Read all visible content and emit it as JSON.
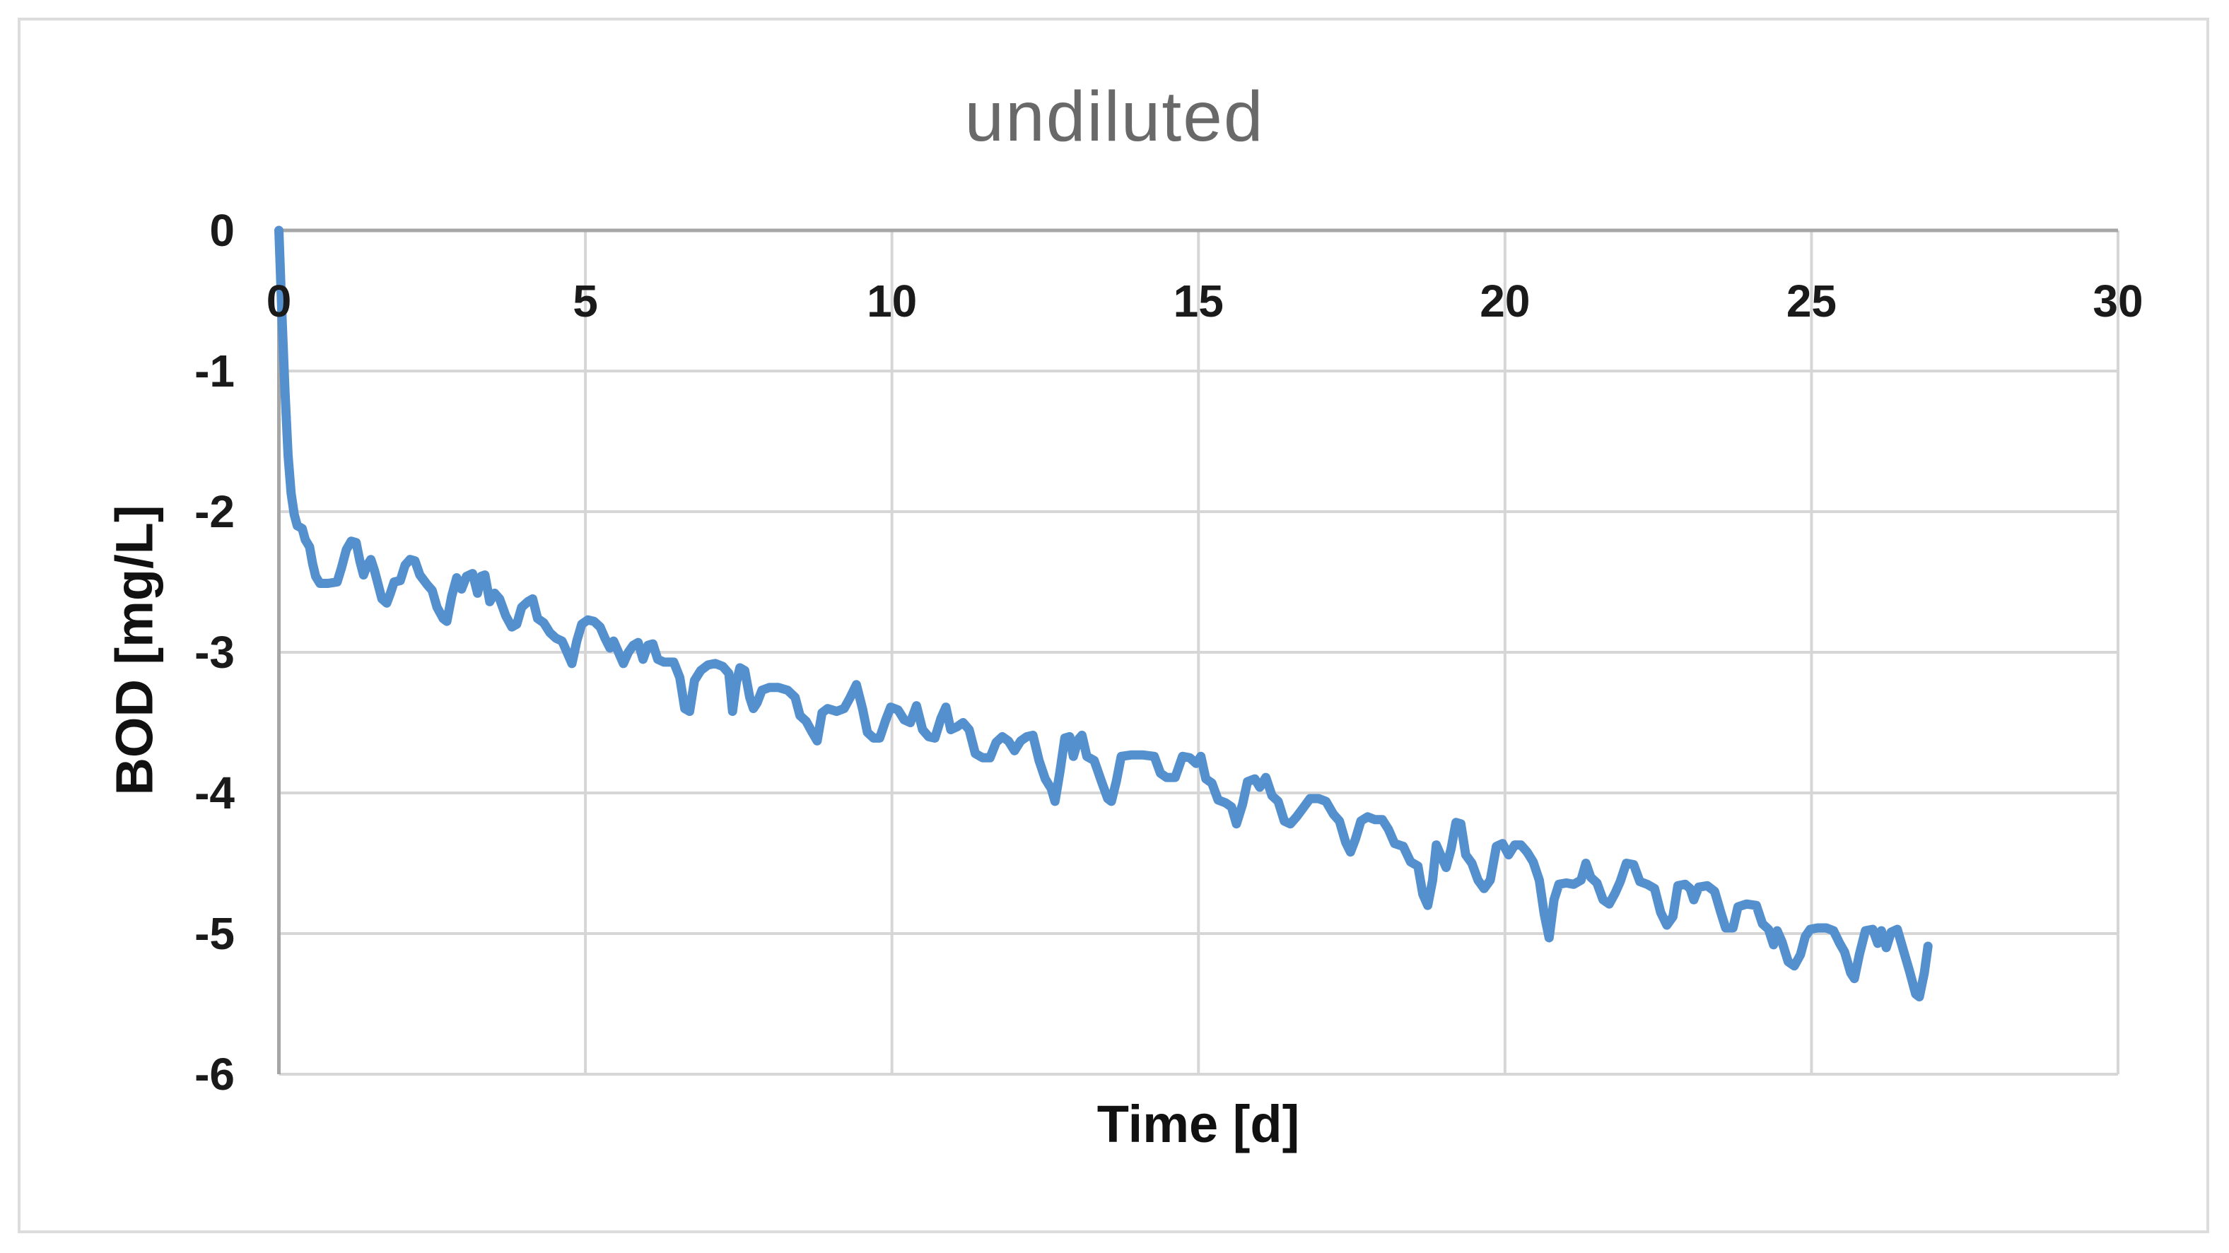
{
  "window": {
    "background": "#ffffff",
    "frame_border_color": "#dcdcdc"
  },
  "chart_data": {
    "type": "line",
    "title": "undiluted",
    "title_color": "#696969",
    "xlabel": "Time [d]",
    "ylabel": "BOD [mg/L]",
    "xlim": [
      0,
      30
    ],
    "ylim": [
      -6,
      0
    ],
    "x_ticks": [
      0,
      5,
      10,
      15,
      20,
      25,
      30
    ],
    "y_ticks": [
      0,
      -1,
      -2,
      -3,
      -4,
      -5,
      -6
    ],
    "grid": true,
    "legend_position": "none",
    "gridline_color": "#d6d6d6",
    "axis_line_color": "#a6a6a6",
    "tick_label_color": "#1a1a1a",
    "series": [
      {
        "color": "#5590ce",
        "line_width": 13,
        "points": [
          [
            0,
            0
          ],
          [
            0.05,
            -0.6
          ],
          [
            0.1,
            -1.15
          ],
          [
            0.15,
            -1.6
          ],
          [
            0.2,
            -1.87
          ],
          [
            0.25,
            -2.02
          ],
          [
            0.3,
            -2.1
          ],
          [
            0.38,
            -2.12
          ],
          [
            0.43,
            -2.2
          ],
          [
            0.5,
            -2.25
          ],
          [
            0.55,
            -2.37
          ],
          [
            0.6,
            -2.46
          ],
          [
            0.67,
            -2.51
          ],
          [
            0.8,
            -2.51
          ],
          [
            0.95,
            -2.5
          ],
          [
            1.02,
            -2.4
          ],
          [
            1.1,
            -2.27
          ],
          [
            1.18,
            -2.21
          ],
          [
            1.26,
            -2.22
          ],
          [
            1.32,
            -2.35
          ],
          [
            1.38,
            -2.45
          ],
          [
            1.44,
            -2.38
          ],
          [
            1.5,
            -2.34
          ],
          [
            1.56,
            -2.42
          ],
          [
            1.62,
            -2.52
          ],
          [
            1.68,
            -2.62
          ],
          [
            1.76,
            -2.65
          ],
          [
            1.82,
            -2.58
          ],
          [
            1.88,
            -2.5
          ],
          [
            1.98,
            -2.49
          ],
          [
            2.06,
            -2.38
          ],
          [
            2.14,
            -2.34
          ],
          [
            2.22,
            -2.35
          ],
          [
            2.3,
            -2.45
          ],
          [
            2.42,
            -2.52
          ],
          [
            2.5,
            -2.56
          ],
          [
            2.58,
            -2.68
          ],
          [
            2.68,
            -2.76
          ],
          [
            2.74,
            -2.78
          ],
          [
            2.82,
            -2.6
          ],
          [
            2.9,
            -2.47
          ],
          [
            2.98,
            -2.55
          ],
          [
            3.06,
            -2.46
          ],
          [
            3.16,
            -2.44
          ],
          [
            3.24,
            -2.58
          ],
          [
            3.3,
            -2.46
          ],
          [
            3.36,
            -2.45
          ],
          [
            3.44,
            -2.64
          ],
          [
            3.52,
            -2.58
          ],
          [
            3.6,
            -2.62
          ],
          [
            3.7,
            -2.74
          ],
          [
            3.8,
            -2.82
          ],
          [
            3.88,
            -2.8
          ],
          [
            3.96,
            -2.68
          ],
          [
            4.06,
            -2.64
          ],
          [
            4.14,
            -2.62
          ],
          [
            4.22,
            -2.76
          ],
          [
            4.32,
            -2.79
          ],
          [
            4.42,
            -2.86
          ],
          [
            4.52,
            -2.9
          ],
          [
            4.62,
            -2.92
          ],
          [
            4.7,
            -3.0
          ],
          [
            4.78,
            -3.08
          ],
          [
            4.86,
            -2.92
          ],
          [
            4.94,
            -2.8
          ],
          [
            5.04,
            -2.77
          ],
          [
            5.14,
            -2.78
          ],
          [
            5.24,
            -2.82
          ],
          [
            5.32,
            -2.9
          ],
          [
            5.4,
            -2.97
          ],
          [
            5.46,
            -2.92
          ],
          [
            5.54,
            -3.0
          ],
          [
            5.62,
            -3.08
          ],
          [
            5.7,
            -3.0
          ],
          [
            5.78,
            -2.95
          ],
          [
            5.86,
            -2.93
          ],
          [
            5.94,
            -3.05
          ],
          [
            6.02,
            -2.95
          ],
          [
            6.1,
            -2.94
          ],
          [
            6.18,
            -3.05
          ],
          [
            6.28,
            -3.07
          ],
          [
            6.44,
            -3.07
          ],
          [
            6.54,
            -3.18
          ],
          [
            6.62,
            -3.4
          ],
          [
            6.7,
            -3.42
          ],
          [
            6.78,
            -3.2
          ],
          [
            6.88,
            -3.13
          ],
          [
            7.0,
            -3.09
          ],
          [
            7.12,
            -3.08
          ],
          [
            7.24,
            -3.1
          ],
          [
            7.34,
            -3.15
          ],
          [
            7.4,
            -3.42
          ],
          [
            7.46,
            -3.22
          ],
          [
            7.52,
            -3.11
          ],
          [
            7.6,
            -3.13
          ],
          [
            7.68,
            -3.32
          ],
          [
            7.74,
            -3.4
          ],
          [
            7.8,
            -3.36
          ],
          [
            7.88,
            -3.27
          ],
          [
            8.0,
            -3.25
          ],
          [
            8.15,
            -3.25
          ],
          [
            8.3,
            -3.27
          ],
          [
            8.42,
            -3.32
          ],
          [
            8.5,
            -3.45
          ],
          [
            8.6,
            -3.49
          ],
          [
            8.7,
            -3.57
          ],
          [
            8.78,
            -3.63
          ],
          [
            8.86,
            -3.43
          ],
          [
            8.95,
            -3.4
          ],
          [
            9.1,
            -3.42
          ],
          [
            9.22,
            -3.4
          ],
          [
            9.32,
            -3.32
          ],
          [
            9.42,
            -3.23
          ],
          [
            9.52,
            -3.4
          ],
          [
            9.6,
            -3.57
          ],
          [
            9.7,
            -3.61
          ],
          [
            9.8,
            -3.61
          ],
          [
            9.9,
            -3.48
          ],
          [
            9.98,
            -3.39
          ],
          [
            10.1,
            -3.41
          ],
          [
            10.2,
            -3.48
          ],
          [
            10.3,
            -3.5
          ],
          [
            10.4,
            -3.38
          ],
          [
            10.5,
            -3.55
          ],
          [
            10.6,
            -3.6
          ],
          [
            10.7,
            -3.61
          ],
          [
            10.8,
            -3.47
          ],
          [
            10.88,
            -3.39
          ],
          [
            10.96,
            -3.55
          ],
          [
            11.06,
            -3.53
          ],
          [
            11.16,
            -3.5
          ],
          [
            11.26,
            -3.55
          ],
          [
            11.36,
            -3.72
          ],
          [
            11.48,
            -3.75
          ],
          [
            11.6,
            -3.75
          ],
          [
            11.7,
            -3.64
          ],
          [
            11.8,
            -3.6
          ],
          [
            11.9,
            -3.63
          ],
          [
            12.0,
            -3.7
          ],
          [
            12.1,
            -3.63
          ],
          [
            12.2,
            -3.6
          ],
          [
            12.3,
            -3.59
          ],
          [
            12.4,
            -3.77
          ],
          [
            12.5,
            -3.9
          ],
          [
            12.6,
            -3.97
          ],
          [
            12.66,
            -4.06
          ],
          [
            12.74,
            -3.85
          ],
          [
            12.82,
            -3.61
          ],
          [
            12.9,
            -3.6
          ],
          [
            12.96,
            -3.74
          ],
          [
            13.04,
            -3.62
          ],
          [
            13.1,
            -3.59
          ],
          [
            13.18,
            -3.74
          ],
          [
            13.3,
            -3.77
          ],
          [
            13.42,
            -3.92
          ],
          [
            13.52,
            -4.04
          ],
          [
            13.58,
            -4.06
          ],
          [
            13.66,
            -3.92
          ],
          [
            13.74,
            -3.74
          ],
          [
            13.9,
            -3.73
          ],
          [
            14.1,
            -3.73
          ],
          [
            14.28,
            -3.74
          ],
          [
            14.38,
            -3.86
          ],
          [
            14.48,
            -3.89
          ],
          [
            14.62,
            -3.89
          ],
          [
            14.74,
            -3.74
          ],
          [
            14.86,
            -3.75
          ],
          [
            14.96,
            -3.79
          ],
          [
            15.04,
            -3.74
          ],
          [
            15.12,
            -3.9
          ],
          [
            15.22,
            -3.93
          ],
          [
            15.32,
            -4.05
          ],
          [
            15.44,
            -4.07
          ],
          [
            15.54,
            -4.1
          ],
          [
            15.62,
            -4.22
          ],
          [
            15.72,
            -4.08
          ],
          [
            15.8,
            -3.92
          ],
          [
            15.92,
            -3.9
          ],
          [
            16.0,
            -3.96
          ],
          [
            16.1,
            -3.89
          ],
          [
            16.2,
            -4.02
          ],
          [
            16.3,
            -4.06
          ],
          [
            16.4,
            -4.2
          ],
          [
            16.5,
            -4.22
          ],
          [
            16.6,
            -4.17
          ],
          [
            16.72,
            -4.1
          ],
          [
            16.82,
            -4.04
          ],
          [
            16.96,
            -4.04
          ],
          [
            17.08,
            -4.06
          ],
          [
            17.2,
            -4.15
          ],
          [
            17.3,
            -4.2
          ],
          [
            17.4,
            -4.35
          ],
          [
            17.48,
            -4.42
          ],
          [
            17.56,
            -4.33
          ],
          [
            17.65,
            -4.2
          ],
          [
            17.76,
            -4.17
          ],
          [
            17.88,
            -4.19
          ],
          [
            18.0,
            -4.19
          ],
          [
            18.1,
            -4.26
          ],
          [
            18.2,
            -4.36
          ],
          [
            18.34,
            -4.38
          ],
          [
            18.46,
            -4.49
          ],
          [
            18.58,
            -4.52
          ],
          [
            18.66,
            -4.72
          ],
          [
            18.74,
            -4.8
          ],
          [
            18.82,
            -4.62
          ],
          [
            18.88,
            -4.37
          ],
          [
            18.96,
            -4.45
          ],
          [
            19.04,
            -4.53
          ],
          [
            19.12,
            -4.4
          ],
          [
            19.2,
            -4.21
          ],
          [
            19.28,
            -4.22
          ],
          [
            19.36,
            -4.44
          ],
          [
            19.46,
            -4.5
          ],
          [
            19.56,
            -4.62
          ],
          [
            19.66,
            -4.68
          ],
          [
            19.76,
            -4.62
          ],
          [
            19.86,
            -4.38
          ],
          [
            19.96,
            -4.36
          ],
          [
            20.06,
            -4.44
          ],
          [
            20.16,
            -4.37
          ],
          [
            20.26,
            -4.37
          ],
          [
            20.36,
            -4.42
          ],
          [
            20.46,
            -4.49
          ],
          [
            20.56,
            -4.62
          ],
          [
            20.64,
            -4.86
          ],
          [
            20.72,
            -5.03
          ],
          [
            20.8,
            -4.76
          ],
          [
            20.88,
            -4.65
          ],
          [
            21.0,
            -4.64
          ],
          [
            21.12,
            -4.65
          ],
          [
            21.24,
            -4.62
          ],
          [
            21.32,
            -4.5
          ],
          [
            21.4,
            -4.6
          ],
          [
            21.5,
            -4.64
          ],
          [
            21.6,
            -4.76
          ],
          [
            21.7,
            -4.79
          ],
          [
            21.8,
            -4.71
          ],
          [
            21.88,
            -4.63
          ],
          [
            21.98,
            -4.5
          ],
          [
            22.1,
            -4.51
          ],
          [
            22.2,
            -4.63
          ],
          [
            22.32,
            -4.65
          ],
          [
            22.44,
            -4.68
          ],
          [
            22.54,
            -4.85
          ],
          [
            22.64,
            -4.94
          ],
          [
            22.74,
            -4.88
          ],
          [
            22.82,
            -4.66
          ],
          [
            22.94,
            -4.65
          ],
          [
            23.02,
            -4.68
          ],
          [
            23.08,
            -4.76
          ],
          [
            23.16,
            -4.67
          ],
          [
            23.3,
            -4.66
          ],
          [
            23.42,
            -4.7
          ],
          [
            23.52,
            -4.85
          ],
          [
            23.6,
            -4.96
          ],
          [
            23.72,
            -4.96
          ],
          [
            23.8,
            -4.81
          ],
          [
            23.94,
            -4.79
          ],
          [
            24.1,
            -4.8
          ],
          [
            24.2,
            -4.93
          ],
          [
            24.3,
            -4.97
          ],
          [
            24.38,
            -5.08
          ],
          [
            24.44,
            -4.98
          ],
          [
            24.52,
            -5.06
          ],
          [
            24.62,
            -5.2
          ],
          [
            24.72,
            -5.23
          ],
          [
            24.82,
            -5.15
          ],
          [
            24.9,
            -5.02
          ],
          [
            24.98,
            -4.97
          ],
          [
            25.1,
            -4.96
          ],
          [
            25.24,
            -4.96
          ],
          [
            25.36,
            -4.98
          ],
          [
            25.46,
            -5.07
          ],
          [
            25.54,
            -5.13
          ],
          [
            25.64,
            -5.28
          ],
          [
            25.7,
            -5.32
          ],
          [
            25.78,
            -5.15
          ],
          [
            25.88,
            -4.98
          ],
          [
            26.0,
            -4.97
          ],
          [
            26.08,
            -5.07
          ],
          [
            26.14,
            -4.98
          ],
          [
            26.22,
            -5.1
          ],
          [
            26.3,
            -4.99
          ],
          [
            26.4,
            -4.97
          ],
          [
            26.5,
            -5.12
          ],
          [
            26.6,
            -5.27
          ],
          [
            26.7,
            -5.43
          ],
          [
            26.76,
            -5.45
          ],
          [
            26.84,
            -5.28
          ],
          [
            26.9,
            -5.09
          ]
        ]
      }
    ]
  }
}
